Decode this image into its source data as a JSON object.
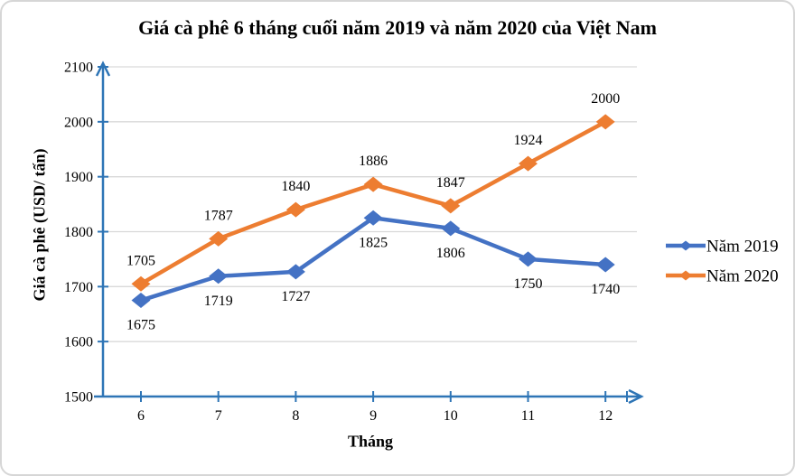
{
  "chart_data": {
    "type": "line",
    "title": "Giá cà phê 6 tháng cuối năm 2019 và năm 2020 của Việt Nam",
    "xlabel": "Tháng",
    "ylabel": "Giá cà phê (USD/ tấn)",
    "x": [
      6,
      7,
      8,
      9,
      10,
      11,
      12
    ],
    "series": [
      {
        "name": "Năm 2019",
        "color": "#4472C4",
        "values": [
          1675,
          1719,
          1727,
          1825,
          1806,
          1750,
          1740
        ],
        "label_position": "below"
      },
      {
        "name": "Năm 2020",
        "color": "#ED7D31",
        "values": [
          1705,
          1787,
          1840,
          1886,
          1847,
          1924,
          2000
        ],
        "label_position": "above"
      }
    ],
    "ylim": [
      1500,
      2100
    ],
    "ytick_step": 100,
    "yticks": [
      1500,
      1600,
      1700,
      1800,
      1900,
      2000,
      2100
    ],
    "grid": true,
    "legend_position": "right",
    "marker": "diamond",
    "axis_color": "#2E75B6",
    "grid_color": "#D9D9D9"
  }
}
